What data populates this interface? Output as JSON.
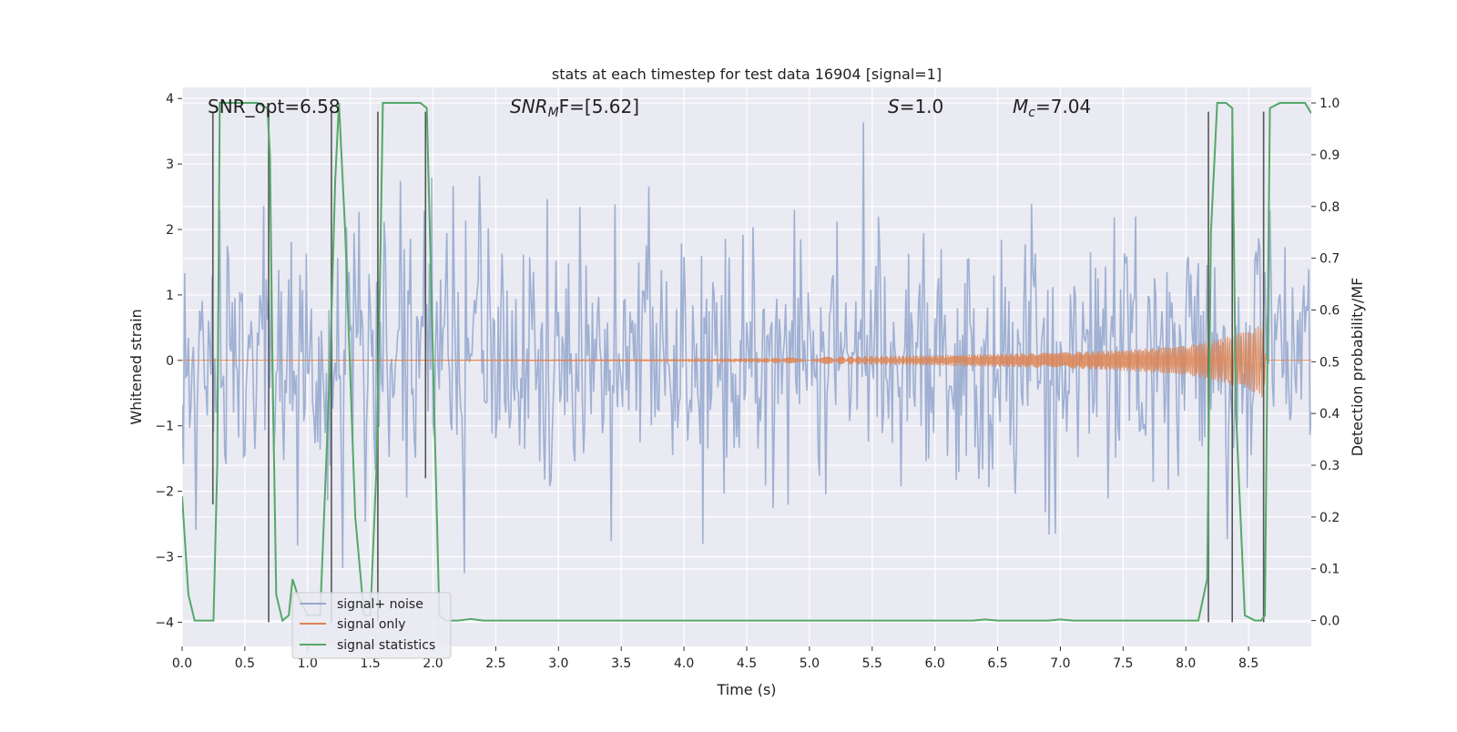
{
  "chart_data": {
    "type": "line",
    "title": "stats at each timestep for test data 16904 [signal=1]",
    "xlabel": "Time (s)",
    "ylabel_left": "Whitened strain",
    "ylabel_right": "Detection probability/MF",
    "xlim": [
      0.0,
      9.0
    ],
    "ylim_left": [
      -4.37,
      4.17
    ],
    "ylim_right": [
      -0.05,
      1.03
    ],
    "x_ticks": [
      0.0,
      0.5,
      1.0,
      1.5,
      2.0,
      2.5,
      3.0,
      3.5,
      4.0,
      4.5,
      5.0,
      5.5,
      6.0,
      6.5,
      7.0,
      7.5,
      8.0,
      8.5
    ],
    "x_tick_labels": [
      "0.0",
      "0.5",
      "1.0",
      "1.5",
      "2.0",
      "2.5",
      "3.0",
      "3.5",
      "4.0",
      "4.5",
      "5.0",
      "5.5",
      "6.0",
      "6.5",
      "7.0",
      "7.5",
      "8.0",
      "8.5"
    ],
    "y_left_ticks": [
      -4,
      -3,
      -2,
      -1,
      0,
      1,
      2,
      3,
      4
    ],
    "y_left_tick_labels": [
      "−4",
      "−3",
      "−2",
      "−1",
      "0",
      "1",
      "2",
      "3",
      "4"
    ],
    "y_right_ticks": [
      0.0,
      0.1,
      0.2,
      0.3,
      0.4,
      0.5,
      0.6,
      0.7,
      0.8,
      0.9,
      1.0
    ],
    "y_right_tick_labels": [
      "0.0",
      "0.1",
      "0.2",
      "0.3",
      "0.4",
      "0.5",
      "0.6",
      "0.7",
      "0.8",
      "0.9",
      "1.0"
    ],
    "annotations": {
      "snr_opt": "SNR_opt=6.58",
      "snr_mf_main": "SNR",
      "snr_mf_sub": "M",
      "snr_mf_rest": "F=[5.62]",
      "s_main": "S",
      "s_rest": "=1.0",
      "mc_main": "M",
      "mc_sub": "c",
      "mc_rest": "=7.04"
    },
    "legend": {
      "location": "lower-left",
      "entries": [
        "signal+ noise",
        "signal only",
        "signal statistics"
      ]
    },
    "colors": {
      "noise": "#97aacf",
      "signal": "#dd8452",
      "stats": "#55a868",
      "vlines": "#555555",
      "background": "#eaeaf2",
      "grid": "#ffffff"
    },
    "noise": {
      "description_std": 1.0,
      "samples": 900,
      "seed": 16904
    },
    "signal": {
      "amplitude_points": [
        [
          0.0,
          0.0
        ],
        [
          4.0,
          0.01
        ],
        [
          5.0,
          0.05
        ],
        [
          6.0,
          0.08
        ],
        [
          7.0,
          0.12
        ],
        [
          7.5,
          0.16
        ],
        [
          8.0,
          0.22
        ],
        [
          8.3,
          0.35
        ],
        [
          8.5,
          0.45
        ],
        [
          8.6,
          0.55
        ],
        [
          8.62,
          0.6
        ],
        [
          8.64,
          0.0
        ],
        [
          9.0,
          0.0
        ]
      ]
    },
    "stats_series": {
      "x": [
        0.0,
        0.05,
        0.1,
        0.2,
        0.25,
        0.28,
        0.3,
        0.35,
        0.6,
        0.68,
        0.7,
        0.72,
        0.75,
        0.8,
        0.85,
        0.88,
        0.92,
        1.0,
        1.1,
        1.18,
        1.22,
        1.25,
        1.3,
        1.38,
        1.45,
        1.5,
        1.55,
        1.58,
        1.6,
        1.65,
        1.9,
        1.95,
        2.0,
        2.05,
        2.1,
        2.2,
        2.3,
        2.4,
        3.0,
        4.0,
        5.0,
        6.0,
        6.3,
        6.4,
        6.5,
        6.9,
        7.0,
        7.1,
        8.0,
        8.1,
        8.17,
        8.2,
        8.25,
        8.32,
        8.37,
        8.4,
        8.47,
        8.55,
        8.6,
        8.63,
        8.67,
        8.75,
        8.85,
        8.95,
        9.0
      ],
      "y": [
        0.24,
        0.05,
        0.0,
        0.0,
        0.0,
        0.3,
        1.0,
        1.0,
        1.0,
        0.99,
        0.9,
        0.5,
        0.05,
        0.0,
        0.01,
        0.08,
        0.05,
        0.01,
        0.01,
        0.5,
        0.85,
        1.0,
        0.75,
        0.2,
        0.01,
        0.01,
        0.3,
        0.7,
        1.0,
        1.0,
        1.0,
        0.99,
        0.5,
        0.01,
        0.0,
        0.0,
        0.003,
        0.0,
        0.0,
        0.0,
        0.0,
        0.0,
        0.0,
        0.002,
        0.0,
        0.0,
        0.002,
        0.0,
        0.0,
        0.0,
        0.08,
        0.75,
        1.0,
        1.0,
        0.99,
        0.4,
        0.01,
        0.0,
        0.0,
        0.01,
        0.99,
        1.0,
        1.0,
        1.0,
        0.98
      ]
    },
    "vertical_lines": [
      {
        "x": 0.245,
        "y0": -2.2,
        "y1": 3.8
      },
      {
        "x": 0.69,
        "y0": -4.0,
        "y1": 3.8
      },
      {
        "x": 1.19,
        "y0": -4.0,
        "y1": 3.8
      },
      {
        "x": 1.56,
        "y0": -4.0,
        "y1": 3.8
      },
      {
        "x": 1.94,
        "y0": -1.8,
        "y1": 3.8
      },
      {
        "x": 8.18,
        "y0": -4.0,
        "y1": 3.8
      },
      {
        "x": 8.37,
        "y0": -4.0,
        "y1": 3.8
      },
      {
        "x": 8.62,
        "y0": -4.0,
        "y1": 3.8
      }
    ]
  }
}
